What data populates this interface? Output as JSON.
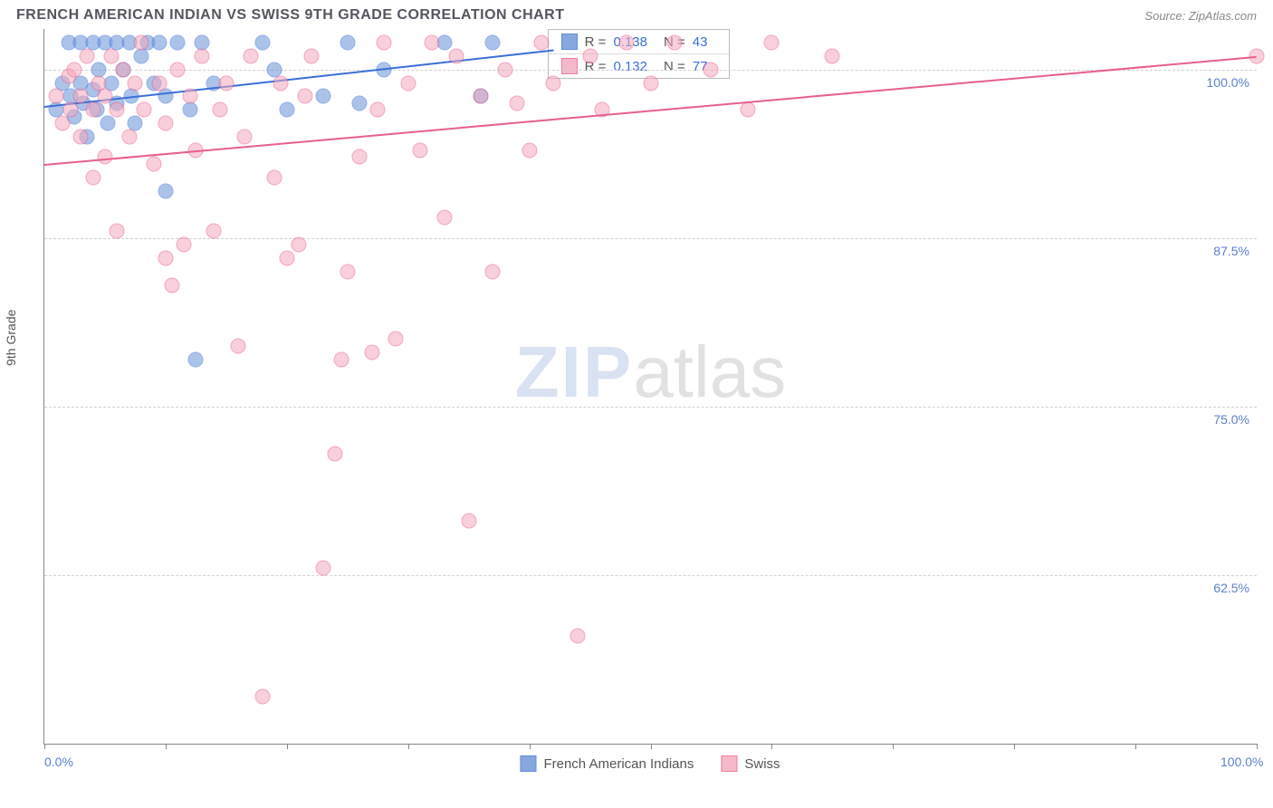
{
  "title": "FRENCH AMERICAN INDIAN VS SWISS 9TH GRADE CORRELATION CHART",
  "source_label": "Source:",
  "source_name": "ZipAtlas.com",
  "chart": {
    "type": "scatter",
    "xlim": [
      0,
      100
    ],
    "ylim": [
      50,
      103
    ],
    "x_ticks": [
      0,
      10,
      20,
      30,
      40,
      50,
      60,
      70,
      80,
      90,
      100
    ],
    "x_labels": {
      "0": "0.0%",
      "100": "100.0%"
    },
    "y_gridlines": [
      62.5,
      75.0,
      87.5,
      100.0
    ],
    "y_labels": {
      "62.5": "62.5%",
      "75.0": "75.0%",
      "87.5": "87.5%",
      "100.0": "100.0%"
    },
    "y_axis_title": "9th Grade",
    "background_color": "#ffffff",
    "grid_color": "#d0d0d0",
    "axis_color": "#888888",
    "marker_radius": 8.5,
    "marker_opacity": 0.55,
    "series": [
      {
        "name": "French American Indians",
        "fill": "#6a93d8",
        "stroke": "#3a6fd8",
        "trend": {
          "x1": 0,
          "y1": 97.3,
          "x2": 42,
          "y2": 101.5,
          "color": "#3a6fd8"
        },
        "stats": {
          "R": "0.138",
          "N": "43"
        },
        "points": [
          [
            1,
            97
          ],
          [
            1.5,
            99
          ],
          [
            2,
            102
          ],
          [
            2.2,
            98
          ],
          [
            2.5,
            96.5
          ],
          [
            3,
            102
          ],
          [
            3,
            99
          ],
          [
            3.2,
            97.5
          ],
          [
            3.5,
            95
          ],
          [
            4,
            102
          ],
          [
            4,
            98.5
          ],
          [
            4.3,
            97
          ],
          [
            4.5,
            100
          ],
          [
            5,
            102
          ],
          [
            5.2,
            96
          ],
          [
            5.5,
            99
          ],
          [
            6,
            102
          ],
          [
            6,
            97.5
          ],
          [
            6.5,
            100
          ],
          [
            7,
            102
          ],
          [
            7.2,
            98
          ],
          [
            7.5,
            96
          ],
          [
            8,
            101
          ],
          [
            8.5,
            102
          ],
          [
            9,
            99
          ],
          [
            9.5,
            102
          ],
          [
            10,
            98
          ],
          [
            10,
            91
          ],
          [
            11,
            102
          ],
          [
            12,
            97
          ],
          [
            12.5,
            78.5
          ],
          [
            13,
            102
          ],
          [
            14,
            99
          ],
          [
            18,
            102
          ],
          [
            19,
            100
          ],
          [
            20,
            97
          ],
          [
            23,
            98
          ],
          [
            25,
            102
          ],
          [
            26,
            97.5
          ],
          [
            28,
            100
          ],
          [
            33,
            102
          ],
          [
            36,
            98
          ],
          [
            37,
            102
          ]
        ]
      },
      {
        "name": "Swiss",
        "fill": "#f4a8bd",
        "stroke": "#e85f8a",
        "trend": {
          "x1": 0,
          "y1": 93.0,
          "x2": 100,
          "y2": 101.0,
          "color": "#e85f8a"
        },
        "stats": {
          "R": "0.132",
          "N": "77"
        },
        "points": [
          [
            1,
            98
          ],
          [
            1.5,
            96
          ],
          [
            2,
            99.5
          ],
          [
            2.2,
            97
          ],
          [
            2.5,
            100
          ],
          [
            3,
            95
          ],
          [
            3,
            98
          ],
          [
            3.5,
            101
          ],
          [
            4,
            92
          ],
          [
            4,
            97
          ],
          [
            4.5,
            99
          ],
          [
            5,
            93.5
          ],
          [
            5,
            98
          ],
          [
            5.5,
            101
          ],
          [
            6,
            88
          ],
          [
            6,
            97
          ],
          [
            6.5,
            100
          ],
          [
            7,
            95
          ],
          [
            7.5,
            99
          ],
          [
            8,
            102
          ],
          [
            8.2,
            97
          ],
          [
            9,
            93
          ],
          [
            9.5,
            99
          ],
          [
            10,
            86
          ],
          [
            10,
            96
          ],
          [
            10.5,
            84
          ],
          [
            11,
            100
          ],
          [
            11.5,
            87
          ],
          [
            12,
            98
          ],
          [
            12.5,
            94
          ],
          [
            13,
            101
          ],
          [
            14,
            88
          ],
          [
            14.5,
            97
          ],
          [
            15,
            99
          ],
          [
            16,
            79.5
          ],
          [
            16.5,
            95
          ],
          [
            17,
            101
          ],
          [
            18,
            53.5
          ],
          [
            19,
            92
          ],
          [
            19.5,
            99
          ],
          [
            20,
            86
          ],
          [
            21,
            87
          ],
          [
            21.5,
            98
          ],
          [
            22,
            101
          ],
          [
            23,
            63
          ],
          [
            24,
            71.5
          ],
          [
            24.5,
            78.5
          ],
          [
            25,
            85
          ],
          [
            26,
            93.5
          ],
          [
            27,
            79
          ],
          [
            27.5,
            97
          ],
          [
            28,
            102
          ],
          [
            29,
            80
          ],
          [
            30,
            99
          ],
          [
            31,
            94
          ],
          [
            32,
            102
          ],
          [
            33,
            89
          ],
          [
            34,
            101
          ],
          [
            35,
            66.5
          ],
          [
            36,
            98
          ],
          [
            37,
            85
          ],
          [
            38,
            100
          ],
          [
            39,
            97.5
          ],
          [
            40,
            94
          ],
          [
            41,
            102
          ],
          [
            42,
            99
          ],
          [
            44,
            58
          ],
          [
            45,
            101
          ],
          [
            46,
            97
          ],
          [
            48,
            102
          ],
          [
            50,
            99
          ],
          [
            52,
            102
          ],
          [
            55,
            100
          ],
          [
            58,
            97
          ],
          [
            60,
            102
          ],
          [
            65,
            101
          ],
          [
            100,
            101
          ]
        ]
      }
    ],
    "legend": [
      {
        "label": "French American Indians",
        "fill": "#6a93d8",
        "stroke": "#3a6fd8"
      },
      {
        "label": "Swiss",
        "fill": "#f4a8bd",
        "stroke": "#e85f8a"
      }
    ]
  },
  "stats_box": {
    "R_label": "R =",
    "N_label": "N ="
  },
  "watermark": {
    "part1": "ZIP",
    "part2": "atlas"
  }
}
